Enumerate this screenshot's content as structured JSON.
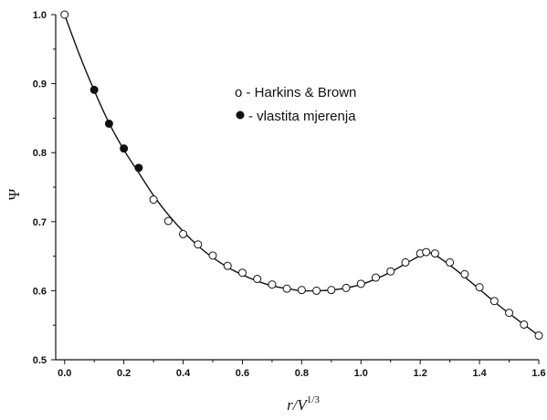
{
  "chart_data": {
    "type": "scatter",
    "title": "",
    "xlabel": {
      "base": "r/V",
      "sup": "1/3"
    },
    "ylabel": "Ψ",
    "xlim": [
      -0.03,
      1.6
    ],
    "ylim": [
      0.5,
      1.0
    ],
    "xticks": [
      "0.0",
      "0.2",
      "0.4",
      "0.6",
      "0.8",
      "1.0",
      "1.2",
      "1.4",
      "1.6"
    ],
    "xtick_values": [
      0.0,
      0.2,
      0.4,
      0.6,
      0.8,
      1.0,
      1.2,
      1.4,
      1.6
    ],
    "yticks": [
      "0.5",
      "0.6",
      "0.7",
      "0.8",
      "0.9",
      "1.0"
    ],
    "ytick_values": [
      0.5,
      0.6,
      0.7,
      0.8,
      0.9,
      1.0
    ],
    "grid": false,
    "legend_position": "top-center",
    "series": [
      {
        "name": "Harkins & Brown",
        "legend_label": "o - Harkins & Brown",
        "marker": "open-circle",
        "x": [
          0.0,
          0.3,
          0.35,
          0.4,
          0.45,
          0.5,
          0.55,
          0.6,
          0.65,
          0.7,
          0.75,
          0.8,
          0.85,
          0.9,
          0.95,
          1.0,
          1.05,
          1.1,
          1.15,
          1.2,
          1.22,
          1.25,
          1.3,
          1.35,
          1.4,
          1.45,
          1.5,
          1.55,
          1.6
        ],
        "y": [
          1.0,
          0.732,
          0.701,
          0.682,
          0.667,
          0.651,
          0.636,
          0.626,
          0.617,
          0.609,
          0.603,
          0.601,
          0.6,
          0.601,
          0.604,
          0.61,
          0.619,
          0.628,
          0.641,
          0.654,
          0.656,
          0.654,
          0.641,
          0.624,
          0.605,
          0.585,
          0.568,
          0.551,
          0.535
        ]
      },
      {
        "name": "vlastita mjerenja",
        "legend_label": "- vlastita mjerenja",
        "marker": "filled-circle",
        "x": [
          0.1,
          0.15,
          0.2,
          0.25
        ],
        "y": [
          0.891,
          0.842,
          0.806,
          0.778
        ]
      }
    ],
    "fit_curve": {
      "x": [
        0.0,
        0.05,
        0.1,
        0.15,
        0.2,
        0.25,
        0.3,
        0.35,
        0.4,
        0.45,
        0.5,
        0.55,
        0.6,
        0.65,
        0.7,
        0.75,
        0.8,
        0.85,
        0.9,
        0.95,
        1.0,
        1.05,
        1.1,
        1.15,
        1.2,
        1.225,
        1.25,
        1.3,
        1.35,
        1.4,
        1.45,
        1.5,
        1.55,
        1.6
      ],
      "y": [
        1.0,
        0.942,
        0.89,
        0.843,
        0.804,
        0.771,
        0.738,
        0.71,
        0.686,
        0.665,
        0.648,
        0.634,
        0.623,
        0.614,
        0.607,
        0.603,
        0.6,
        0.6,
        0.601,
        0.604,
        0.609,
        0.617,
        0.627,
        0.639,
        0.651,
        0.655,
        0.652,
        0.637,
        0.62,
        0.602,
        0.584,
        0.567,
        0.551,
        0.535
      ]
    }
  }
}
